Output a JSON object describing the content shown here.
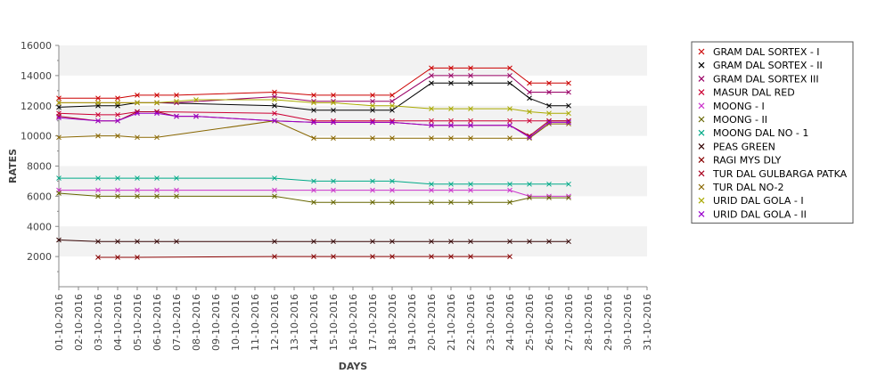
{
  "chart_data": {
    "type": "line",
    "title": "",
    "xlabel": "DAYS",
    "ylabel": "RATES",
    "ylim": [
      0,
      16000
    ],
    "yticks": [
      2000,
      4000,
      6000,
      8000,
      10000,
      12000,
      14000,
      16000
    ],
    "grid": "horizontal alternating bands",
    "legend_position": "right",
    "categories": [
      "01-10-2016",
      "02-10-2016",
      "03-10-2016",
      "04-10-2016",
      "05-10-2016",
      "06-10-2016",
      "07-10-2016",
      "08-10-2016",
      "09-10-2016",
      "10-10-2016",
      "11-10-2016",
      "12-10-2016",
      "13-10-2016",
      "14-10-2016",
      "15-10-2016",
      "16-10-2016",
      "17-10-2016",
      "18-10-2016",
      "19-10-2016",
      "20-10-2016",
      "21-10-2016",
      "22-10-2016",
      "23-10-2016",
      "24-10-2016",
      "25-10-2016",
      "26-10-2016",
      "27-10-2016",
      "28-10-2016",
      "29-10-2016",
      "30-10-2016",
      "31-10-2016"
    ],
    "series": [
      {
        "name": "GRAM DAL SORTEX - I",
        "color": "#cc0000",
        "values": [
          12500,
          null,
          12500,
          12500,
          12700,
          12700,
          12700,
          null,
          null,
          null,
          null,
          12900,
          null,
          12700,
          12700,
          null,
          12700,
          12700,
          null,
          14500,
          14500,
          14500,
          null,
          14500,
          13500,
          13500,
          13500,
          null,
          null,
          null,
          null
        ]
      },
      {
        "name": "GRAM DAL SORTEX - II",
        "color": "#000000",
        "values": [
          11900,
          null,
          12000,
          12000,
          12200,
          12200,
          null,
          null,
          null,
          null,
          null,
          12000,
          null,
          11700,
          11700,
          null,
          11700,
          11700,
          null,
          13500,
          13500,
          13500,
          null,
          13500,
          12500,
          12000,
          12000,
          null,
          null,
          null,
          null
        ]
      },
      {
        "name": "GRAM DAL SORTEX III",
        "color": "#990066",
        "values": [
          12200,
          null,
          12200,
          12200,
          12200,
          12200,
          12200,
          null,
          null,
          null,
          null,
          12600,
          null,
          12300,
          12300,
          null,
          12300,
          12300,
          null,
          14000,
          14000,
          14000,
          null,
          14000,
          12900,
          12900,
          12900,
          null,
          null,
          null,
          null
        ]
      },
      {
        "name": "MASUR DAL RED",
        "color": "#cc0033",
        "values": [
          11500,
          null,
          11400,
          11400,
          11600,
          11600,
          null,
          null,
          null,
          null,
          null,
          11500,
          null,
          11000,
          11000,
          null,
          11000,
          11000,
          null,
          11000,
          11000,
          11000,
          null,
          11000,
          11000,
          11000,
          11000,
          null,
          null,
          null,
          null
        ]
      },
      {
        "name": "MOONG - I",
        "color": "#cc33cc",
        "values": [
          6400,
          null,
          6400,
          6400,
          6400,
          6400,
          6400,
          null,
          null,
          null,
          null,
          6400,
          null,
          6400,
          6400,
          null,
          6400,
          6400,
          null,
          6400,
          6400,
          6400,
          null,
          6400,
          6000,
          6000,
          6000,
          null,
          null,
          null,
          null
        ]
      },
      {
        "name": "MOONG - II",
        "color": "#666600",
        "values": [
          6200,
          null,
          6000,
          6000,
          6000,
          6000,
          6000,
          null,
          null,
          null,
          null,
          6000,
          null,
          5600,
          5600,
          null,
          5600,
          5600,
          null,
          5600,
          5600,
          5600,
          null,
          5600,
          5900,
          5900,
          5900,
          null,
          null,
          null,
          null
        ]
      },
      {
        "name": "MOONG DAL NO - 1",
        "color": "#00aa88",
        "values": [
          7200,
          null,
          7200,
          7200,
          7200,
          7200,
          7200,
          null,
          null,
          null,
          null,
          7200,
          null,
          7000,
          7000,
          null,
          7000,
          7000,
          null,
          6800,
          6800,
          6800,
          null,
          6800,
          6800,
          6800,
          6800,
          null,
          null,
          null,
          null
        ]
      },
      {
        "name": "PEAS GREEN",
        "color": "#330000",
        "values": [
          3100,
          null,
          3000,
          3000,
          3000,
          3000,
          3000,
          null,
          null,
          null,
          null,
          3000,
          null,
          3000,
          3000,
          null,
          3000,
          3000,
          null,
          3000,
          3000,
          3000,
          null,
          3000,
          3000,
          3000,
          3000,
          null,
          null,
          null,
          null
        ]
      },
      {
        "name": "RAGI MYS DLY",
        "color": "#880000",
        "values": [
          null,
          null,
          1950,
          1950,
          1950,
          null,
          null,
          null,
          null,
          null,
          null,
          2000,
          null,
          2000,
          2000,
          null,
          2000,
          2000,
          null,
          2000,
          2000,
          2000,
          null,
          2000,
          null,
          null,
          null,
          null,
          null,
          null,
          null
        ]
      },
      {
        "name": "TUR DAL GULBARGA PATKA",
        "color": "#aa0022",
        "values": [
          11300,
          null,
          11000,
          11000,
          11600,
          11600,
          11300,
          11300,
          null,
          null,
          null,
          11000,
          null,
          10900,
          10900,
          null,
          10900,
          10900,
          null,
          10700,
          10700,
          10700,
          null,
          10700,
          10000,
          11000,
          11000,
          null,
          null,
          null,
          null
        ]
      },
      {
        "name": "TUR DAL NO-2",
        "color": "#886600",
        "values": [
          9900,
          null,
          10000,
          10000,
          9900,
          9900,
          null,
          null,
          null,
          null,
          null,
          11000,
          null,
          9850,
          9850,
          null,
          9850,
          9850,
          null,
          9850,
          9850,
          9850,
          null,
          9850,
          9850,
          10800,
          10800,
          null,
          null,
          null,
          null
        ]
      },
      {
        "name": "URID DAL GOLA - I",
        "color": "#aaaa00",
        "values": [
          12200,
          null,
          12200,
          12200,
          12200,
          12200,
          12300,
          12400,
          null,
          null,
          null,
          12400,
          null,
          12200,
          12200,
          null,
          12000,
          12000,
          null,
          11800,
          11800,
          11800,
          null,
          11800,
          11600,
          11500,
          11500,
          null,
          null,
          null,
          null
        ]
      },
      {
        "name": "URID DAL GOLA - II",
        "color": "#9900cc",
        "values": [
          11200,
          null,
          11000,
          11000,
          11500,
          11500,
          11300,
          11300,
          null,
          null,
          null,
          11000,
          null,
          10900,
          10900,
          null,
          10900,
          10900,
          null,
          10700,
          10700,
          10700,
          null,
          10700,
          9900,
          10900,
          10900,
          null,
          null,
          null,
          null
        ]
      }
    ]
  }
}
